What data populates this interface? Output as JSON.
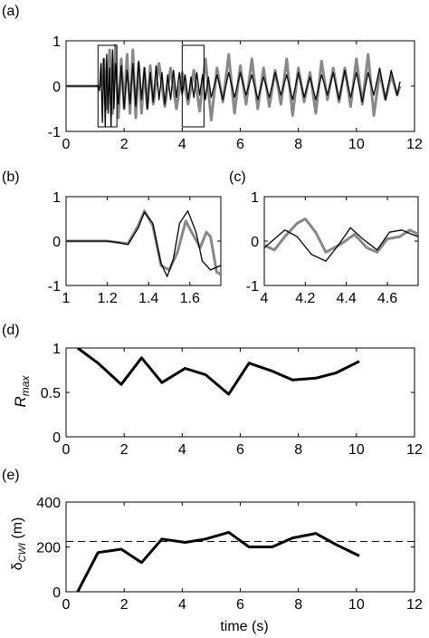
{
  "chart_data": [
    {
      "id": "a",
      "panel_label": "(a)",
      "type": "line",
      "xlim": [
        0,
        12
      ],
      "ylim": [
        -1,
        1
      ],
      "xticks": [
        0,
        2,
        4,
        6,
        8,
        10,
        12
      ],
      "yticks": [
        -1,
        0,
        1
      ],
      "series": [
        {
          "role": "reference",
          "color": "#000000",
          "x": [
            0.0,
            1.1,
            1.15,
            1.2,
            1.25,
            1.3,
            1.35,
            1.4,
            1.45,
            1.5,
            1.55,
            1.6,
            1.65,
            1.7,
            1.8,
            1.9,
            2.0,
            2.1,
            2.2,
            2.3,
            2.4,
            2.5,
            2.6,
            2.7,
            2.8,
            2.9,
            3.0,
            3.1,
            3.2,
            3.3,
            3.4,
            3.5,
            3.6,
            3.7,
            3.8,
            3.9,
            4.0,
            4.1,
            4.2,
            4.3,
            4.4,
            4.5,
            4.6,
            4.7,
            4.8,
            4.9,
            5.0,
            5.2,
            5.4,
            5.6,
            5.8,
            6.0,
            6.2,
            6.4,
            6.6,
            6.8,
            7.0,
            7.2,
            7.4,
            7.6,
            7.8,
            8.0,
            8.2,
            8.4,
            8.6,
            8.8,
            9.0,
            9.2,
            9.4,
            9.6,
            9.8,
            10.0,
            10.2,
            10.4,
            10.6,
            10.8,
            11.0,
            11.2,
            11.4,
            11.5
          ],
          "values": [
            0.0,
            0.0,
            -0.1,
            0.5,
            -0.8,
            0.6,
            -0.9,
            0.7,
            -0.6,
            0.4,
            -0.9,
            0.8,
            -0.5,
            0.5,
            -0.4,
            0.45,
            -0.5,
            0.35,
            -0.4,
            0.5,
            -0.45,
            0.55,
            -0.3,
            0.4,
            -0.5,
            0.3,
            -0.35,
            0.45,
            -0.3,
            0.3,
            -0.4,
            0.25,
            -0.3,
            0.35,
            -0.25,
            0.3,
            -0.2,
            0.25,
            -0.3,
            0.2,
            -0.25,
            0.3,
            -0.2,
            0.25,
            -0.3,
            0.2,
            -0.25,
            0.25,
            -0.3,
            0.3,
            -0.25,
            0.3,
            -0.2,
            0.25,
            -0.3,
            0.2,
            -0.25,
            0.3,
            -0.2,
            0.25,
            -0.3,
            0.3,
            -0.25,
            0.2,
            -0.3,
            0.25,
            -0.2,
            0.3,
            -0.3,
            0.35,
            -0.25,
            0.3,
            -0.35,
            0.3,
            -0.2,
            0.4,
            -0.3,
            0.35,
            -0.2,
            0.1
          ]
        },
        {
          "role": "comparison",
          "color": "#888888",
          "x": [
            0.0,
            1.2,
            1.3,
            1.4,
            1.5,
            1.6,
            1.7,
            1.8,
            1.9,
            2.0,
            2.1,
            2.2,
            2.3,
            2.4,
            2.5,
            2.6,
            2.7,
            2.8,
            2.9,
            3.0,
            3.2,
            3.4,
            3.6,
            3.8,
            4.0,
            4.2,
            4.4,
            4.6,
            4.8,
            5.0,
            5.2,
            5.4,
            5.6,
            5.8,
            6.0,
            6.2,
            6.4,
            6.6,
            6.8,
            7.0,
            7.2,
            7.4,
            7.6,
            7.8,
            8.0,
            8.2,
            8.4,
            8.6,
            8.8,
            9.0,
            9.2,
            9.4,
            9.6,
            9.8,
            10.0,
            10.2,
            10.4,
            10.6,
            10.8,
            11.0,
            11.2,
            11.4,
            11.5
          ],
          "values": [
            0.0,
            0.0,
            0.6,
            -0.5,
            0.8,
            -0.6,
            0.9,
            -0.7,
            0.6,
            -0.5,
            0.7,
            -0.6,
            0.8,
            -0.7,
            0.5,
            -0.6,
            0.4,
            -0.5,
            0.45,
            -0.4,
            0.5,
            -0.45,
            0.4,
            -0.5,
            0.3,
            -0.4,
            0.35,
            -0.55,
            0.6,
            -0.75,
            0.4,
            -0.35,
            0.7,
            -0.6,
            0.45,
            -0.4,
            0.6,
            -0.5,
            0.4,
            -0.45,
            0.35,
            -0.4,
            0.6,
            -0.65,
            0.4,
            -0.35,
            0.3,
            -0.6,
            0.55,
            -0.3,
            0.4,
            -0.35,
            0.4,
            -0.45,
            0.6,
            -0.4,
            0.7,
            -0.65,
            0.3,
            -0.3,
            0.25,
            -0.2,
            0.0
          ]
        }
      ],
      "highlight_boxes": [
        {
          "x": [
            1.1,
            1.75
          ],
          "y": [
            -0.9,
            0.9
          ]
        },
        {
          "x": [
            4.0,
            4.75
          ],
          "y": [
            -0.9,
            0.9
          ]
        }
      ]
    },
    {
      "id": "b",
      "panel_label": "(b)",
      "type": "line",
      "xlim": [
        1,
        1.75
      ],
      "ylim": [
        -1,
        1
      ],
      "xticks": [
        1,
        1.2,
        1.4,
        1.6
      ],
      "xtick_labels": [
        "1",
        "1.2",
        "1.4",
        "1.6"
      ],
      "yticks": [
        -1,
        0,
        1
      ],
      "series": [
        {
          "role": "reference",
          "color": "#000000",
          "x": [
            1.0,
            1.2,
            1.25,
            1.3,
            1.35,
            1.38,
            1.42,
            1.46,
            1.49,
            1.52,
            1.55,
            1.59,
            1.63,
            1.66,
            1.7,
            1.75
          ],
          "values": [
            0.0,
            0.0,
            -0.03,
            -0.08,
            0.3,
            0.65,
            0.4,
            -0.5,
            -0.8,
            -0.4,
            0.4,
            0.68,
            0.2,
            -0.45,
            -0.65,
            -0.55
          ]
        },
        {
          "role": "comparison",
          "color": "#888888",
          "x": [
            1.0,
            1.2,
            1.25,
            1.3,
            1.35,
            1.38,
            1.42,
            1.46,
            1.5,
            1.54,
            1.58,
            1.62,
            1.65,
            1.68,
            1.7,
            1.73,
            1.75
          ],
          "values": [
            0.0,
            0.0,
            -0.03,
            -0.06,
            0.35,
            0.68,
            0.35,
            -0.55,
            -0.65,
            -0.25,
            0.45,
            0.1,
            -0.15,
            0.2,
            0.1,
            -0.7,
            -0.75
          ]
        }
      ]
    },
    {
      "id": "c",
      "panel_label": "(c)",
      "type": "line",
      "xlim": [
        4,
        4.75
      ],
      "ylim": [
        -1,
        1
      ],
      "xticks": [
        4,
        4.2,
        4.4,
        4.6
      ],
      "xtick_labels": [
        "4",
        "4.2",
        "4.4",
        "4.6"
      ],
      "yticks": [
        -1,
        0,
        1
      ],
      "series": [
        {
          "role": "reference",
          "color": "#000000",
          "x": [
            4.0,
            4.05,
            4.1,
            4.16,
            4.23,
            4.3,
            4.36,
            4.42,
            4.48,
            4.55,
            4.61,
            4.67,
            4.72,
            4.75
          ],
          "values": [
            -0.15,
            0.05,
            0.25,
            0.1,
            -0.3,
            -0.45,
            -0.1,
            0.3,
            0.05,
            -0.2,
            0.2,
            0.25,
            0.15,
            0.1
          ]
        },
        {
          "role": "comparison",
          "color": "#888888",
          "x": [
            4.0,
            4.05,
            4.1,
            4.16,
            4.2,
            4.25,
            4.3,
            4.38,
            4.44,
            4.5,
            4.55,
            4.6,
            4.66,
            4.71,
            4.75
          ],
          "values": [
            -0.1,
            -0.2,
            0.1,
            0.4,
            0.5,
            0.2,
            -0.25,
            -0.05,
            0.15,
            -0.15,
            -0.25,
            0.05,
            0.1,
            0.25,
            0.15
          ]
        }
      ]
    },
    {
      "id": "d",
      "panel_label": "(d)",
      "type": "line",
      "xlim": [
        0,
        12
      ],
      "ylim": [
        0,
        1
      ],
      "xticks": [
        0,
        2,
        4,
        6,
        8,
        10,
        12
      ],
      "yticks": [
        0,
        0.5,
        1
      ],
      "ylabel_main": "R",
      "ylabel_sub": "max",
      "series": [
        {
          "role": "rmax",
          "color": "#000000",
          "x": [
            0.4,
            1.1,
            1.9,
            2.6,
            3.3,
            4.1,
            4.8,
            5.6,
            6.3,
            7.1,
            7.8,
            8.6,
            9.3,
            10.1
          ],
          "values": [
            1.0,
            0.83,
            0.59,
            0.89,
            0.61,
            0.77,
            0.7,
            0.48,
            0.83,
            0.74,
            0.64,
            0.66,
            0.72,
            0.85
          ]
        }
      ]
    },
    {
      "id": "e",
      "panel_label": "(e)",
      "type": "line",
      "xlim": [
        0,
        12
      ],
      "ylim": [
        0,
        400
      ],
      "xticks": [
        0,
        2,
        4,
        6,
        8,
        10,
        12
      ],
      "yticks": [
        0,
        200,
        400
      ],
      "ylabel_prefix": "δ",
      "ylabel_sub": "CWI",
      "ylabel_suffix": " (m)",
      "xlabel": "time (s)",
      "reference_line": 224,
      "series": [
        {
          "role": "delta",
          "color": "#000000",
          "x": [
            0.4,
            1.1,
            1.9,
            2.6,
            3.3,
            4.1,
            4.8,
            5.6,
            6.3,
            7.1,
            7.8,
            8.6,
            9.3,
            10.1
          ],
          "values": [
            0,
            175,
            190,
            130,
            235,
            220,
            235,
            265,
            200,
            200,
            240,
            260,
            210,
            160
          ]
        }
      ]
    }
  ]
}
